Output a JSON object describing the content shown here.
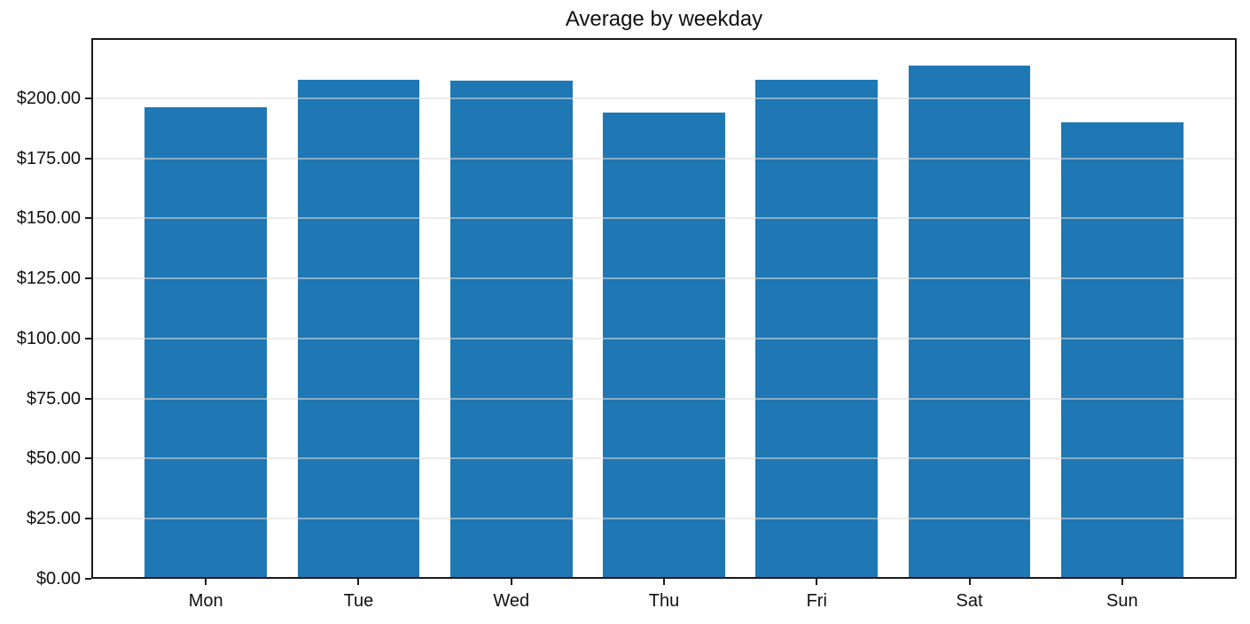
{
  "chart_data": {
    "type": "bar",
    "title": "Average by weekday",
    "categories": [
      "Mon",
      "Tue",
      "Wed",
      "Thu",
      "Fri",
      "Sat",
      "Sun"
    ],
    "values": [
      196.4,
      207.6,
      207.2,
      194.0,
      207.8,
      213.6,
      190.0
    ],
    "xlabel": "",
    "ylabel": "",
    "ylim": [
      0,
      225
    ],
    "yticks": [
      0,
      25,
      50,
      75,
      100,
      125,
      150,
      175,
      200
    ],
    "ytick_labels": [
      "$0.00",
      "$25.00",
      "$50.00",
      "$75.00",
      "$100.00",
      "$125.00",
      "$150.00",
      "$175.00",
      "$200.00"
    ],
    "bar_color": "#1f77b4",
    "grid": "horizontal-over-bars",
    "legend": "none"
  },
  "style": {
    "background": "#ffffff",
    "bar_color": "#1f77b4",
    "grid_rgba": "rgba(221,221,221,0.55)",
    "spine_color": "#1a1a1a",
    "text_color": "#111111"
  }
}
